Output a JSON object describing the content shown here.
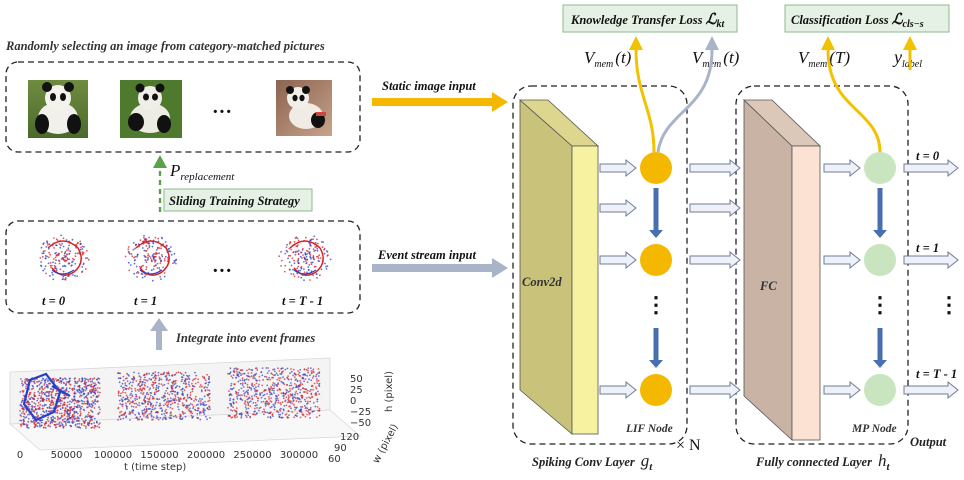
{
  "top_caption": "Randomly selecting an image from category-matched pictures",
  "static_input_label": "Static image input",
  "event_input_label": "Event stream input",
  "p_replacement": {
    "main": "P",
    "sub": "replacement"
  },
  "sliding_strategy": "Sliding Training Strategy",
  "integrate_label": "Integrate into event frames",
  "image_dots": "···",
  "event_frames": {
    "labels": [
      "t = 0",
      "t = 1",
      "t = T - 1"
    ],
    "dots": "···"
  },
  "losses": {
    "kt": {
      "text": "Knowledge Transfer Loss ",
      "symbol": "ℒ",
      "sub": "kt"
    },
    "cls": {
      "text": "Classification Loss ",
      "symbol": "ℒ",
      "sub": "cls−s"
    }
  },
  "vmem": {
    "v": "V",
    "sub": "mem",
    "t": "(t)",
    "T": "(T)"
  },
  "ylabel": {
    "main": "y",
    "sub": "label"
  },
  "conv_block": {
    "inner": "Conv2d",
    "node_label": "LIF Node",
    "caption": "Spiking Conv Layer",
    "caption_symbol": "g",
    "caption_sub": "t",
    "times": "× N"
  },
  "fc_block": {
    "inner": "FC",
    "node_label": "MP Node",
    "caption": "Fully connected Layer",
    "caption_symbol": "h",
    "caption_sub": "t"
  },
  "output_label": "Output",
  "time_labels": [
    "t = 0",
    "t = 1",
    "t = T - 1"
  ],
  "vertical_dots": "⋮",
  "plot3d": {
    "x_label": "t (time step)",
    "x_ticks": [
      "0",
      "50000",
      "100000",
      "150000",
      "200000",
      "250000",
      "300000"
    ],
    "h_label": "h (pixel)",
    "h_ticks": [
      "50",
      "25",
      "0",
      "−25",
      "−50"
    ],
    "w_label": "w (pixel)",
    "w_ticks": [
      "120",
      "90",
      "60"
    ]
  },
  "colors": {
    "lif_node": "#f5b800",
    "mp_node": "#c9e5bf",
    "conv_front": "#f7f2a0",
    "conv_side": "#c9c27a",
    "fc_front": "#fbe2d3",
    "fc_side": "#c8b3a4",
    "loss_box": "#e4f1e4",
    "yellow_arrow": "#f2c200",
    "gray_arrow": "#a9b4c8",
    "blue_arrow": "#4a6fb0",
    "green_dash": "#5aa14a",
    "event_red": "#d9201f",
    "event_blue": "#2a3fc8"
  }
}
